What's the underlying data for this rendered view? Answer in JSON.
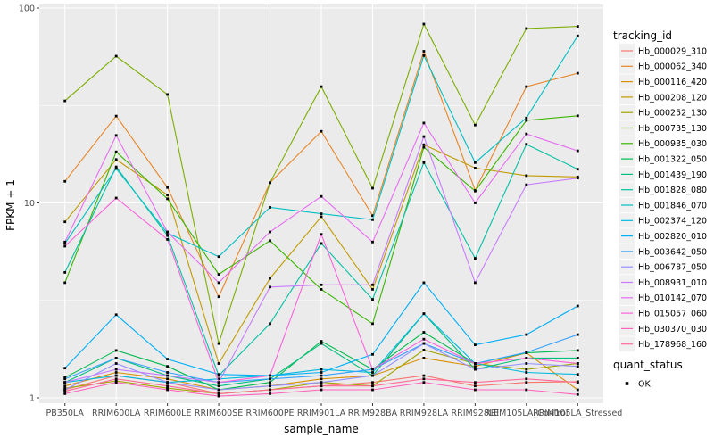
{
  "figure": {
    "background": "#ffffff",
    "panel_bg": "#ebebeb",
    "grid_color": "#ffffff",
    "tick_color": "#333333",
    "tick_label_color": "#4d4d4d",
    "title_color": "#000000",
    "legend_key_bg": "#f0f0f0",
    "marker_color": "#000000"
  },
  "axes": {
    "x": {
      "label": "sample_name"
    },
    "y": {
      "label": "FPKM + 1",
      "scale": "log10",
      "major_ticks": [
        1,
        10,
        100
      ],
      "minor_breaks": [
        3.1623,
        31.623
      ]
    }
  },
  "legend": {
    "tracking_title": "tracking_id",
    "quant_title": "quant_status",
    "quant_items": [
      {
        "label": "OK"
      }
    ]
  },
  "chart_data": {
    "type": "line",
    "title": "",
    "xlabel": "sample_name",
    "ylabel": "FPKM + 1",
    "yscale": "log10",
    "ylim": [
      1,
      100
    ],
    "grid": true,
    "legend_position": "right",
    "marker": "black-square",
    "categories": [
      "PB350LA",
      "RRIM600LA",
      "RRIM600LE",
      "RRIM600SE",
      "RRIM600PE",
      "RRIM901LA",
      "RRIM928BA",
      "RRIM928LA",
      "RRIM928LE",
      "RRIM105LA_Control",
      "RRIM105LA_Stressed"
    ],
    "series": [
      {
        "name": "Hb_000029_310",
        "color": "#F8766D",
        "values": [
          1.1,
          1.3,
          1.2,
          1.05,
          1.1,
          1.15,
          1.2,
          1.3,
          1.15,
          1.2,
          1.21
        ]
      },
      {
        "name": "Hb_000062_340",
        "color": "#E88526",
        "values": [
          12.9,
          27.9,
          12.0,
          3.3,
          12.7,
          23.3,
          8.6,
          60.0,
          11.6,
          39.5,
          46.3
        ]
      },
      {
        "name": "Hb_000116_420",
        "color": "#D89000",
        "values": [
          1.15,
          1.35,
          1.25,
          1.1,
          1.15,
          1.25,
          1.3,
          1.6,
          1.45,
          1.7,
          1.1
        ]
      },
      {
        "name": "Hb_000208_120",
        "color": "#C09B00",
        "values": [
          8.0,
          16.7,
          11.0,
          1.5,
          4.1,
          8.5,
          3.6,
          19.9,
          15.1,
          13.8,
          13.6
        ]
      },
      {
        "name": "Hb_000252_130",
        "color": "#A3A500",
        "values": [
          1.12,
          1.22,
          1.12,
          1.05,
          1.1,
          1.2,
          1.15,
          1.76,
          1.5,
          1.4,
          1.5
        ]
      },
      {
        "name": "Hb_000735_130",
        "color": "#7CAE00",
        "values": [
          33.4,
          56.6,
          36.0,
          1.9,
          12.7,
          39.5,
          11.9,
          82.7,
          25.1,
          78.5,
          80.5
        ]
      },
      {
        "name": "Hb_000935_030",
        "color": "#39B600",
        "values": [
          3.9,
          18.3,
          10.5,
          4.3,
          6.4,
          3.6,
          2.4,
          19.3,
          11.5,
          26.5,
          28.0
        ]
      },
      {
        "name": "Hb_001322_050",
        "color": "#00BB4E",
        "values": [
          1.27,
          1.75,
          1.45,
          1.1,
          1.2,
          1.95,
          1.4,
          2.17,
          1.5,
          1.7,
          1.75
        ]
      },
      {
        "name": "Hb_001439_190",
        "color": "#00BF7D",
        "values": [
          1.2,
          1.6,
          1.3,
          1.15,
          1.25,
          1.9,
          1.3,
          2.7,
          1.4,
          1.6,
          1.6
        ]
      },
      {
        "name": "Hb_001828_080",
        "color": "#00C1A3",
        "values": [
          4.4,
          15.3,
          6.8,
          1.3,
          2.4,
          6.2,
          3.2,
          16.1,
          5.2,
          20.0,
          14.9
        ]
      },
      {
        "name": "Hb_001846_070",
        "color": "#00BFC4",
        "values": [
          6.2,
          15.0,
          7.0,
          5.3,
          9.5,
          8.8,
          8.2,
          57.0,
          16.1,
          27.3,
          72.0
        ]
      },
      {
        "name": "Hb_002374_120",
        "color": "#00BAE0",
        "values": [
          1.2,
          1.3,
          1.2,
          1.25,
          1.3,
          1.4,
          1.35,
          2.7,
          1.5,
          1.35,
          1.32
        ]
      },
      {
        "name": "Hb_002820_010",
        "color": "#00B0F6",
        "values": [
          1.42,
          2.67,
          1.58,
          1.32,
          1.3,
          1.35,
          1.67,
          3.9,
          1.87,
          2.11,
          2.96
        ]
      },
      {
        "name": "Hb_003642_050",
        "color": "#35A2FF",
        "values": [
          1.25,
          1.6,
          1.35,
          1.2,
          1.25,
          1.3,
          1.4,
          1.9,
          1.5,
          1.71,
          2.11
        ]
      },
      {
        "name": "Hb_006787_050",
        "color": "#9590FF",
        "values": [
          1.1,
          1.5,
          1.2,
          1.1,
          1.15,
          1.2,
          1.3,
          1.9,
          1.4,
          1.5,
          1.45
        ]
      },
      {
        "name": "Hb_008931_010",
        "color": "#C77CFF",
        "values": [
          1.2,
          1.4,
          1.3,
          1.2,
          3.7,
          3.8,
          3.8,
          21.9,
          3.9,
          12.4,
          13.4
        ]
      },
      {
        "name": "Hb_010142_070",
        "color": "#E76BF3",
        "values": [
          6.3,
          22.2,
          7.1,
          3.9,
          7.1,
          10.8,
          6.3,
          25.7,
          10.0,
          22.6,
          18.5
        ]
      },
      {
        "name": "Hb_015057_060",
        "color": "#FA62DB",
        "values": [
          6.0,
          10.6,
          6.5,
          1.2,
          1.3,
          6.9,
          1.4,
          2.0,
          1.5,
          1.6,
          1.5
        ]
      },
      {
        "name": "Hb_030370_030",
        "color": "#FF62BC",
        "values": [
          1.05,
          1.2,
          1.1,
          1.02,
          1.05,
          1.1,
          1.1,
          1.2,
          1.1,
          1.1,
          1.04
        ]
      },
      {
        "name": "Hb_178968_160",
        "color": "#FF6A98",
        "values": [
          1.08,
          1.25,
          1.15,
          1.05,
          1.1,
          1.15,
          1.15,
          1.25,
          1.2,
          1.25,
          1.2
        ]
      }
    ]
  }
}
